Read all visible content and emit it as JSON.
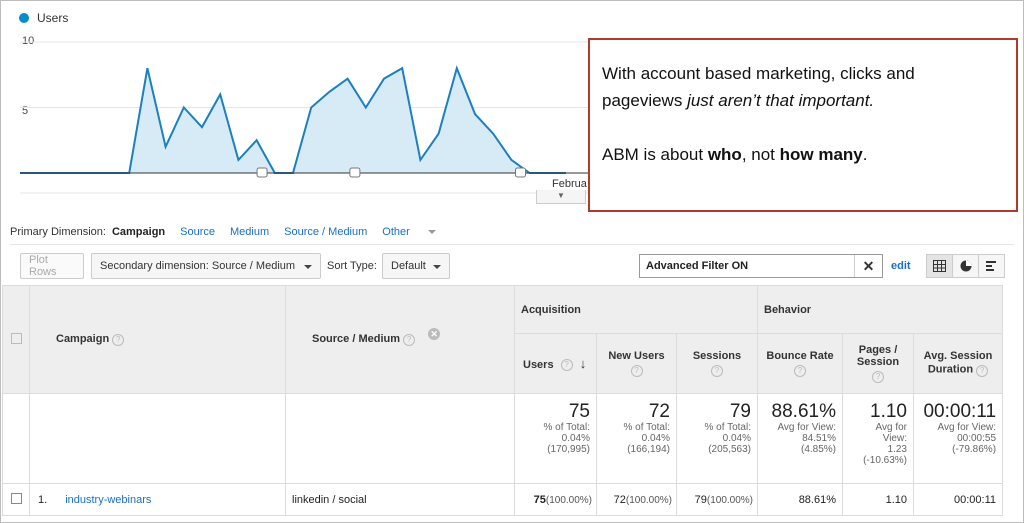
{
  "chart_data": {
    "type": "area",
    "series": [
      {
        "name": "Users",
        "values": [
          0,
          0,
          0,
          0,
          0,
          0,
          0,
          8,
          2,
          5,
          3.5,
          6,
          1,
          2.5,
          0,
          0,
          5,
          6.2,
          7.2,
          5,
          7.2,
          8,
          1,
          3,
          8,
          4.5,
          3,
          1,
          0,
          0,
          0
        ]
      }
    ],
    "ylim": [
      0,
      10
    ],
    "yticks": [
      "10",
      "5"
    ],
    "x_visible_label": "Februa",
    "color": "#058dc7"
  },
  "legend": {
    "label": "Users"
  },
  "callout": {
    "line1": "With account based marketing, clicks and",
    "line2a": "pageviews ",
    "line2b": "just aren’t that important.",
    "line3a": "ABM is about ",
    "line3b": "who",
    "line3c": ", not ",
    "line3d": "how many",
    "line3e": "."
  },
  "dimension": {
    "label": "Primary Dimension:",
    "active": "Campaign",
    "links": [
      "Source",
      "Medium",
      "Source / Medium",
      "Other"
    ]
  },
  "toolbar": {
    "plot_rows": "Plot Rows",
    "secondary": "Secondary dimension: Source / Medium",
    "sort_label": "Sort Type:",
    "sort_value": "Default",
    "filter": "Advanced Filter ON",
    "edit": "edit"
  },
  "table": {
    "col_campaign": "Campaign",
    "col_source": "Source / Medium",
    "group_acq": "Acquisition",
    "group_beh": "Behavior",
    "col_users": "Users",
    "col_newusers": "New Users",
    "col_sessions": "Sessions",
    "col_bounce": "Bounce Rate",
    "col_pages_a": "Pages /",
    "col_pages_b": "Session",
    "col_dur_a": "Avg. Session",
    "col_dur_b": "Duration",
    "totals": {
      "users": "75",
      "users_sub": [
        "% of Total:",
        "0.04%",
        "(170,995)"
      ],
      "newusers": "72",
      "newusers_sub": [
        "% of Total:",
        "0.04%",
        "(166,194)"
      ],
      "sessions": "79",
      "sessions_sub": [
        "% of Total:",
        "0.04%",
        "(205,563)"
      ],
      "bounce": "88.61%",
      "bounce_sub": [
        "Avg for View:",
        "84.51%",
        "(4.85%)"
      ],
      "pages": "1.10",
      "pages_sub": [
        "Avg for",
        "View:",
        "1.23",
        "(-10.63%)"
      ],
      "dur": "00:00:11",
      "dur_sub": [
        "Avg for View:",
        "00:00:55",
        "(-79.86%)"
      ]
    },
    "row": {
      "num": "1.",
      "campaign": "industry-webinars",
      "source": "linkedin / social",
      "users": "75",
      "users_pct": "(100.00%)",
      "newusers": "72",
      "newusers_pct": "(100.00%)",
      "sessions": "79",
      "sessions_pct": "(100.00%)",
      "bounce": "88.61%",
      "pages": "1.10",
      "dur": "00:00:11"
    }
  }
}
